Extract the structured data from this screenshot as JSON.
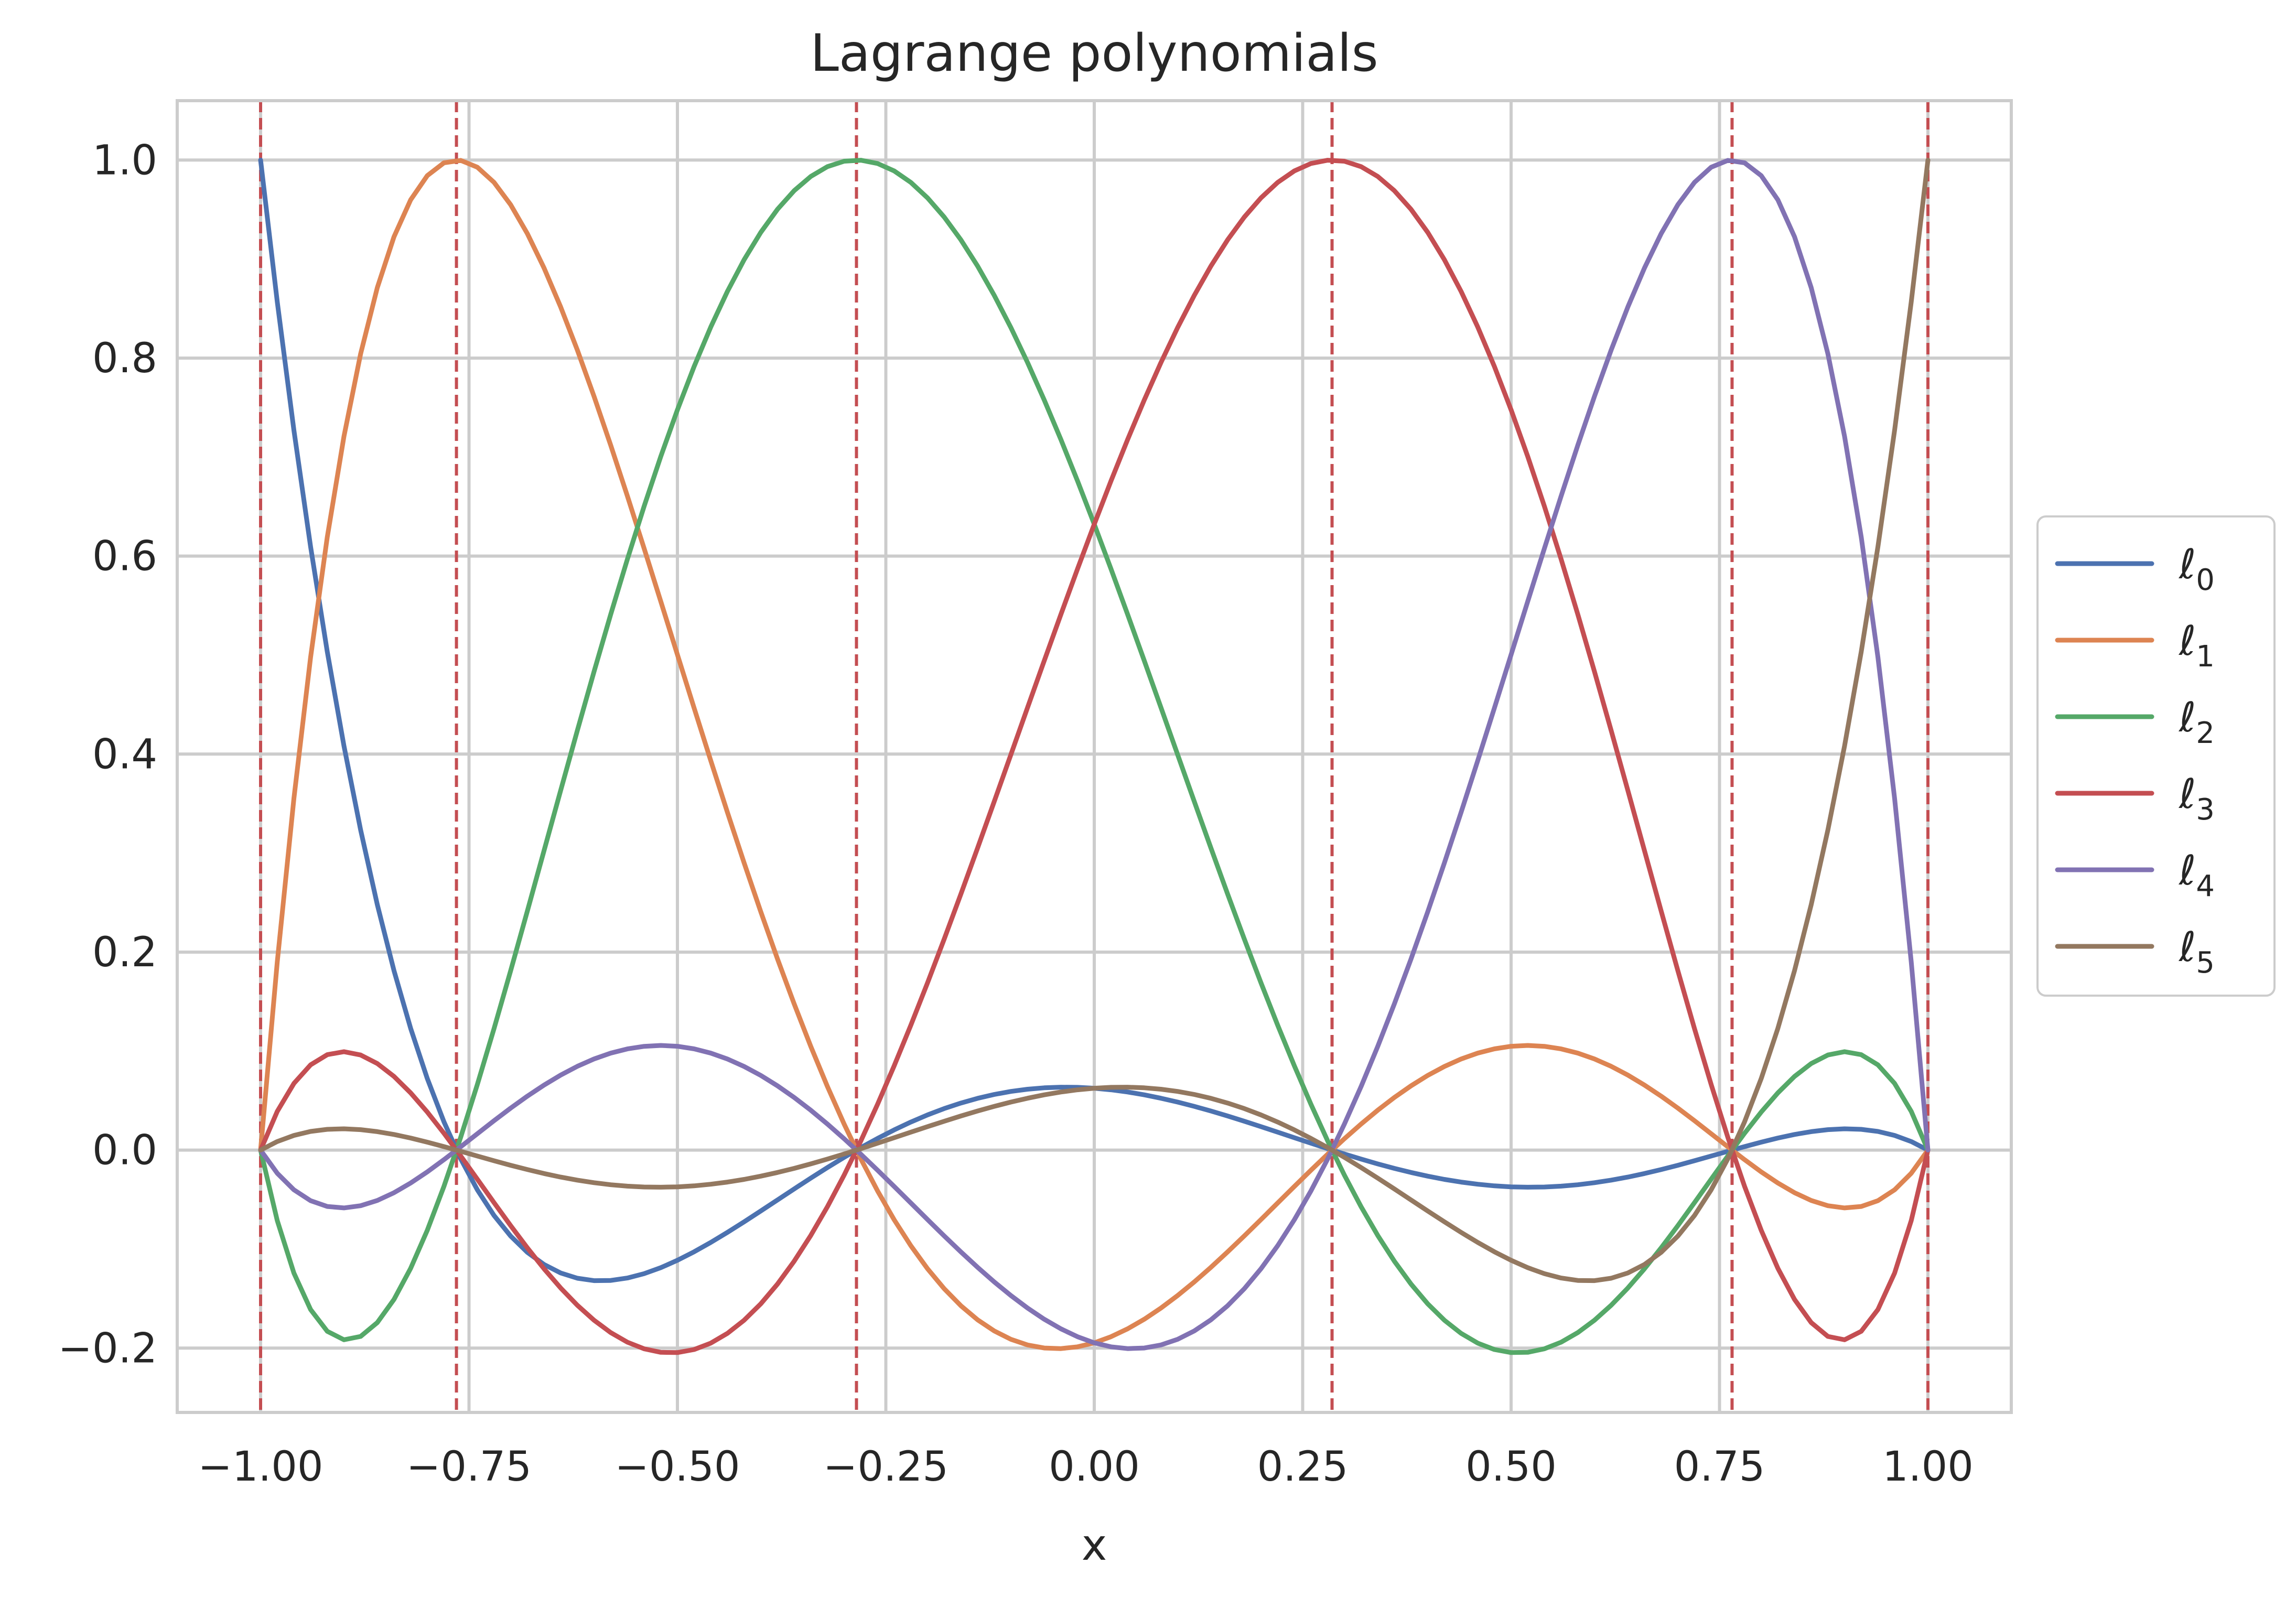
{
  "chart_data": {
    "type": "line",
    "title": "Lagrange polynomials",
    "xlabel": "x",
    "ylabel": "",
    "xlim": [
      -1.1,
      1.1
    ],
    "ylim": [
      -0.265,
      1.06
    ],
    "xticks": [
      -1.0,
      -0.75,
      -0.5,
      -0.25,
      0.0,
      0.25,
      0.5,
      0.75,
      1.0
    ],
    "xtick_labels": [
      "−1.00",
      "−0.75",
      "−0.50",
      "−0.25",
      "0.00",
      "0.25",
      "0.50",
      "0.75",
      "1.00"
    ],
    "yticks": [
      -0.2,
      0.0,
      0.2,
      0.4,
      0.6,
      0.8,
      1.0
    ],
    "ytick_labels": [
      "−0.2",
      "0.0",
      "0.2",
      "0.4",
      "0.6",
      "0.8",
      "1.0"
    ],
    "grid": true,
    "legend_position": "center-right, outside plot",
    "nodes": [
      -1.0,
      -0.765055,
      -0.285232,
      0.285232,
      0.765055,
      1.0
    ],
    "node_line_color": "#c44e52",
    "node_line_style": "dashed",
    "x_range": [
      -1.0,
      1.0
    ],
    "series": [
      {
        "name": "ℓ",
        "subscript": "0",
        "color": "#4c72b0"
      },
      {
        "name": "ℓ",
        "subscript": "1",
        "color": "#dd8452"
      },
      {
        "name": "ℓ",
        "subscript": "2",
        "color": "#55a868"
      },
      {
        "name": "ℓ",
        "subscript": "3",
        "color": "#c44e52"
      },
      {
        "name": "ℓ",
        "subscript": "4",
        "color": "#8172b3"
      },
      {
        "name": "ℓ",
        "subscript": "5",
        "color": "#937860"
      }
    ]
  }
}
